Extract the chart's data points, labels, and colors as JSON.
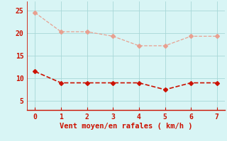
{
  "x": [
    0,
    1,
    2,
    3,
    4,
    5,
    6,
    7
  ],
  "y_wind": [
    11.5,
    9.0,
    9.0,
    9.0,
    9.0,
    7.5,
    9.0,
    9.0
  ],
  "y_gusts": [
    24.5,
    20.3,
    20.3,
    19.3,
    17.2,
    17.2,
    19.3,
    19.3
  ],
  "line_color": "#cc1100",
  "gust_color": "#e8a090",
  "bg_color": "#d8f5f5",
  "grid_color": "#a8d8d8",
  "axis_color": "#cc1100",
  "text_color": "#cc1100",
  "xlabel": "Vent moyen/en rafales ( km/h )",
  "xlabel_fontsize": 7.5,
  "tick_fontsize": 7,
  "yticks": [
    5,
    10,
    15,
    20,
    25
  ],
  "xticks": [
    0,
    1,
    2,
    3,
    4,
    5,
    6,
    7
  ],
  "ylim": [
    3,
    27
  ],
  "xlim": [
    -0.3,
    7.3
  ],
  "marker": "D",
  "markersize": 3,
  "linewidth_wind": 1.2,
  "linewidth_gust": 0.9
}
